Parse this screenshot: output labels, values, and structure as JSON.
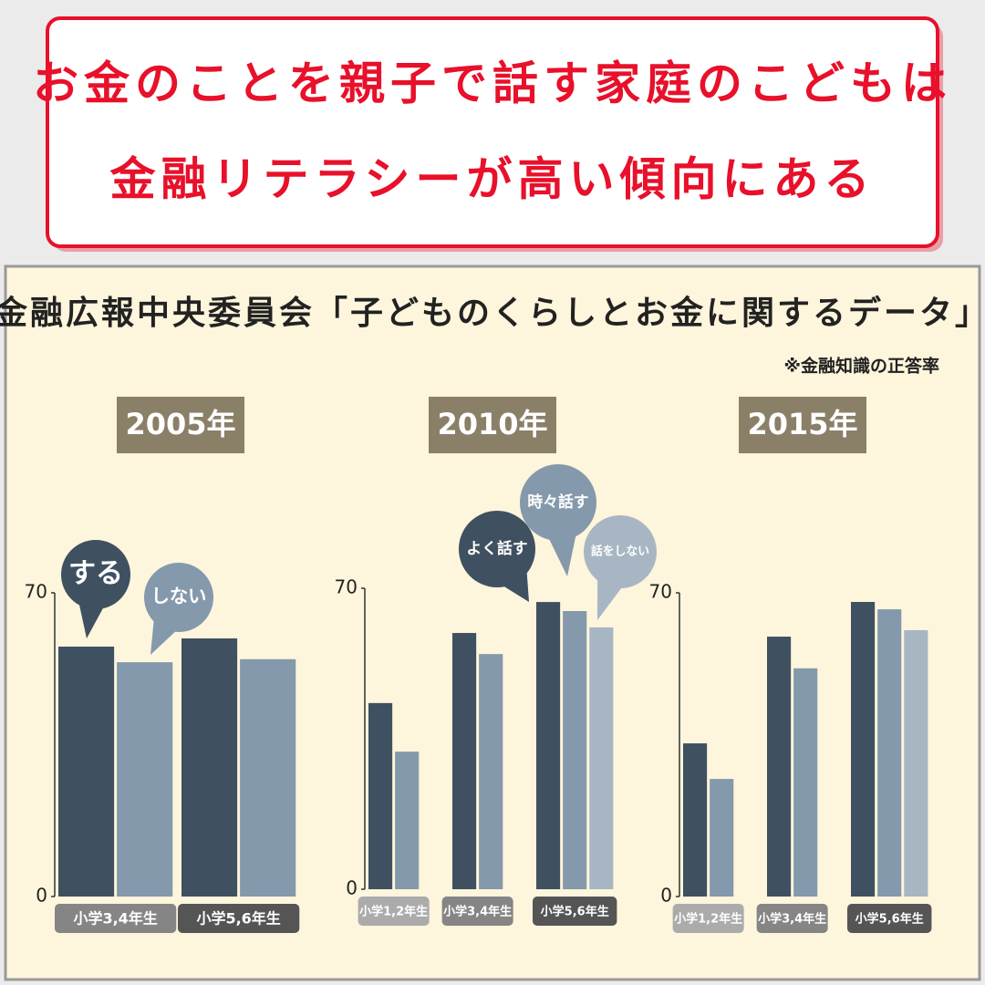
{
  "header": {
    "title_lines": [
      "お金のことを親子で話す家庭のこどもは",
      "金融リテラシーが高い傾向にある"
    ]
  },
  "source": "金融広報中央委員会「子どものくらしとお金に関するデータ」",
  "note": "※金融知識の正答率",
  "chart_data": [
    {
      "type": "bar",
      "title": "2005年",
      "categories": [
        "小学3,4年生",
        "小学5,6年生"
      ],
      "series": [
        {
          "name": "する",
          "color": "#3f5060",
          "values": [
            57.6,
            59.5
          ]
        },
        {
          "name": "しない",
          "color": "#8499ab",
          "values": [
            54.0,
            54.7
          ]
        }
      ],
      "ylim": [
        0,
        70
      ],
      "yticks": [
        0,
        70
      ]
    },
    {
      "type": "bar",
      "title": "2010年",
      "categories": [
        "小学1,2年生",
        "小学3,4年生",
        "小学5,6年生"
      ],
      "series": [
        {
          "name": "よく話す",
          "color": "#3f5060",
          "values": [
            43.3,
            59.6,
            66.8
          ]
        },
        {
          "name": "時々話す",
          "color": "#8499ab",
          "values": [
            32.0,
            54.7,
            64.7
          ]
        },
        {
          "name": "話をしない",
          "color": "#a8b6c4",
          "values": [
            null,
            null,
            60.9
          ]
        }
      ],
      "ylim": [
        0,
        70
      ],
      "yticks": [
        0,
        70
      ]
    },
    {
      "type": "bar",
      "title": "2015年",
      "categories": [
        "小学1,2年生",
        "小学3,4年生",
        "小学5,6年生"
      ],
      "series": [
        {
          "color": "#3f5060",
          "values": [
            35.3,
            59.9,
            67.9
          ]
        },
        {
          "color": "#8499ab",
          "values": [
            27.1,
            52.6,
            66.2
          ]
        },
        {
          "color": "#a8b6c4",
          "values": [
            null,
            null,
            61.4
          ]
        }
      ],
      "ylim": [
        0,
        70
      ],
      "yticks": [
        0,
        70
      ]
    }
  ]
}
